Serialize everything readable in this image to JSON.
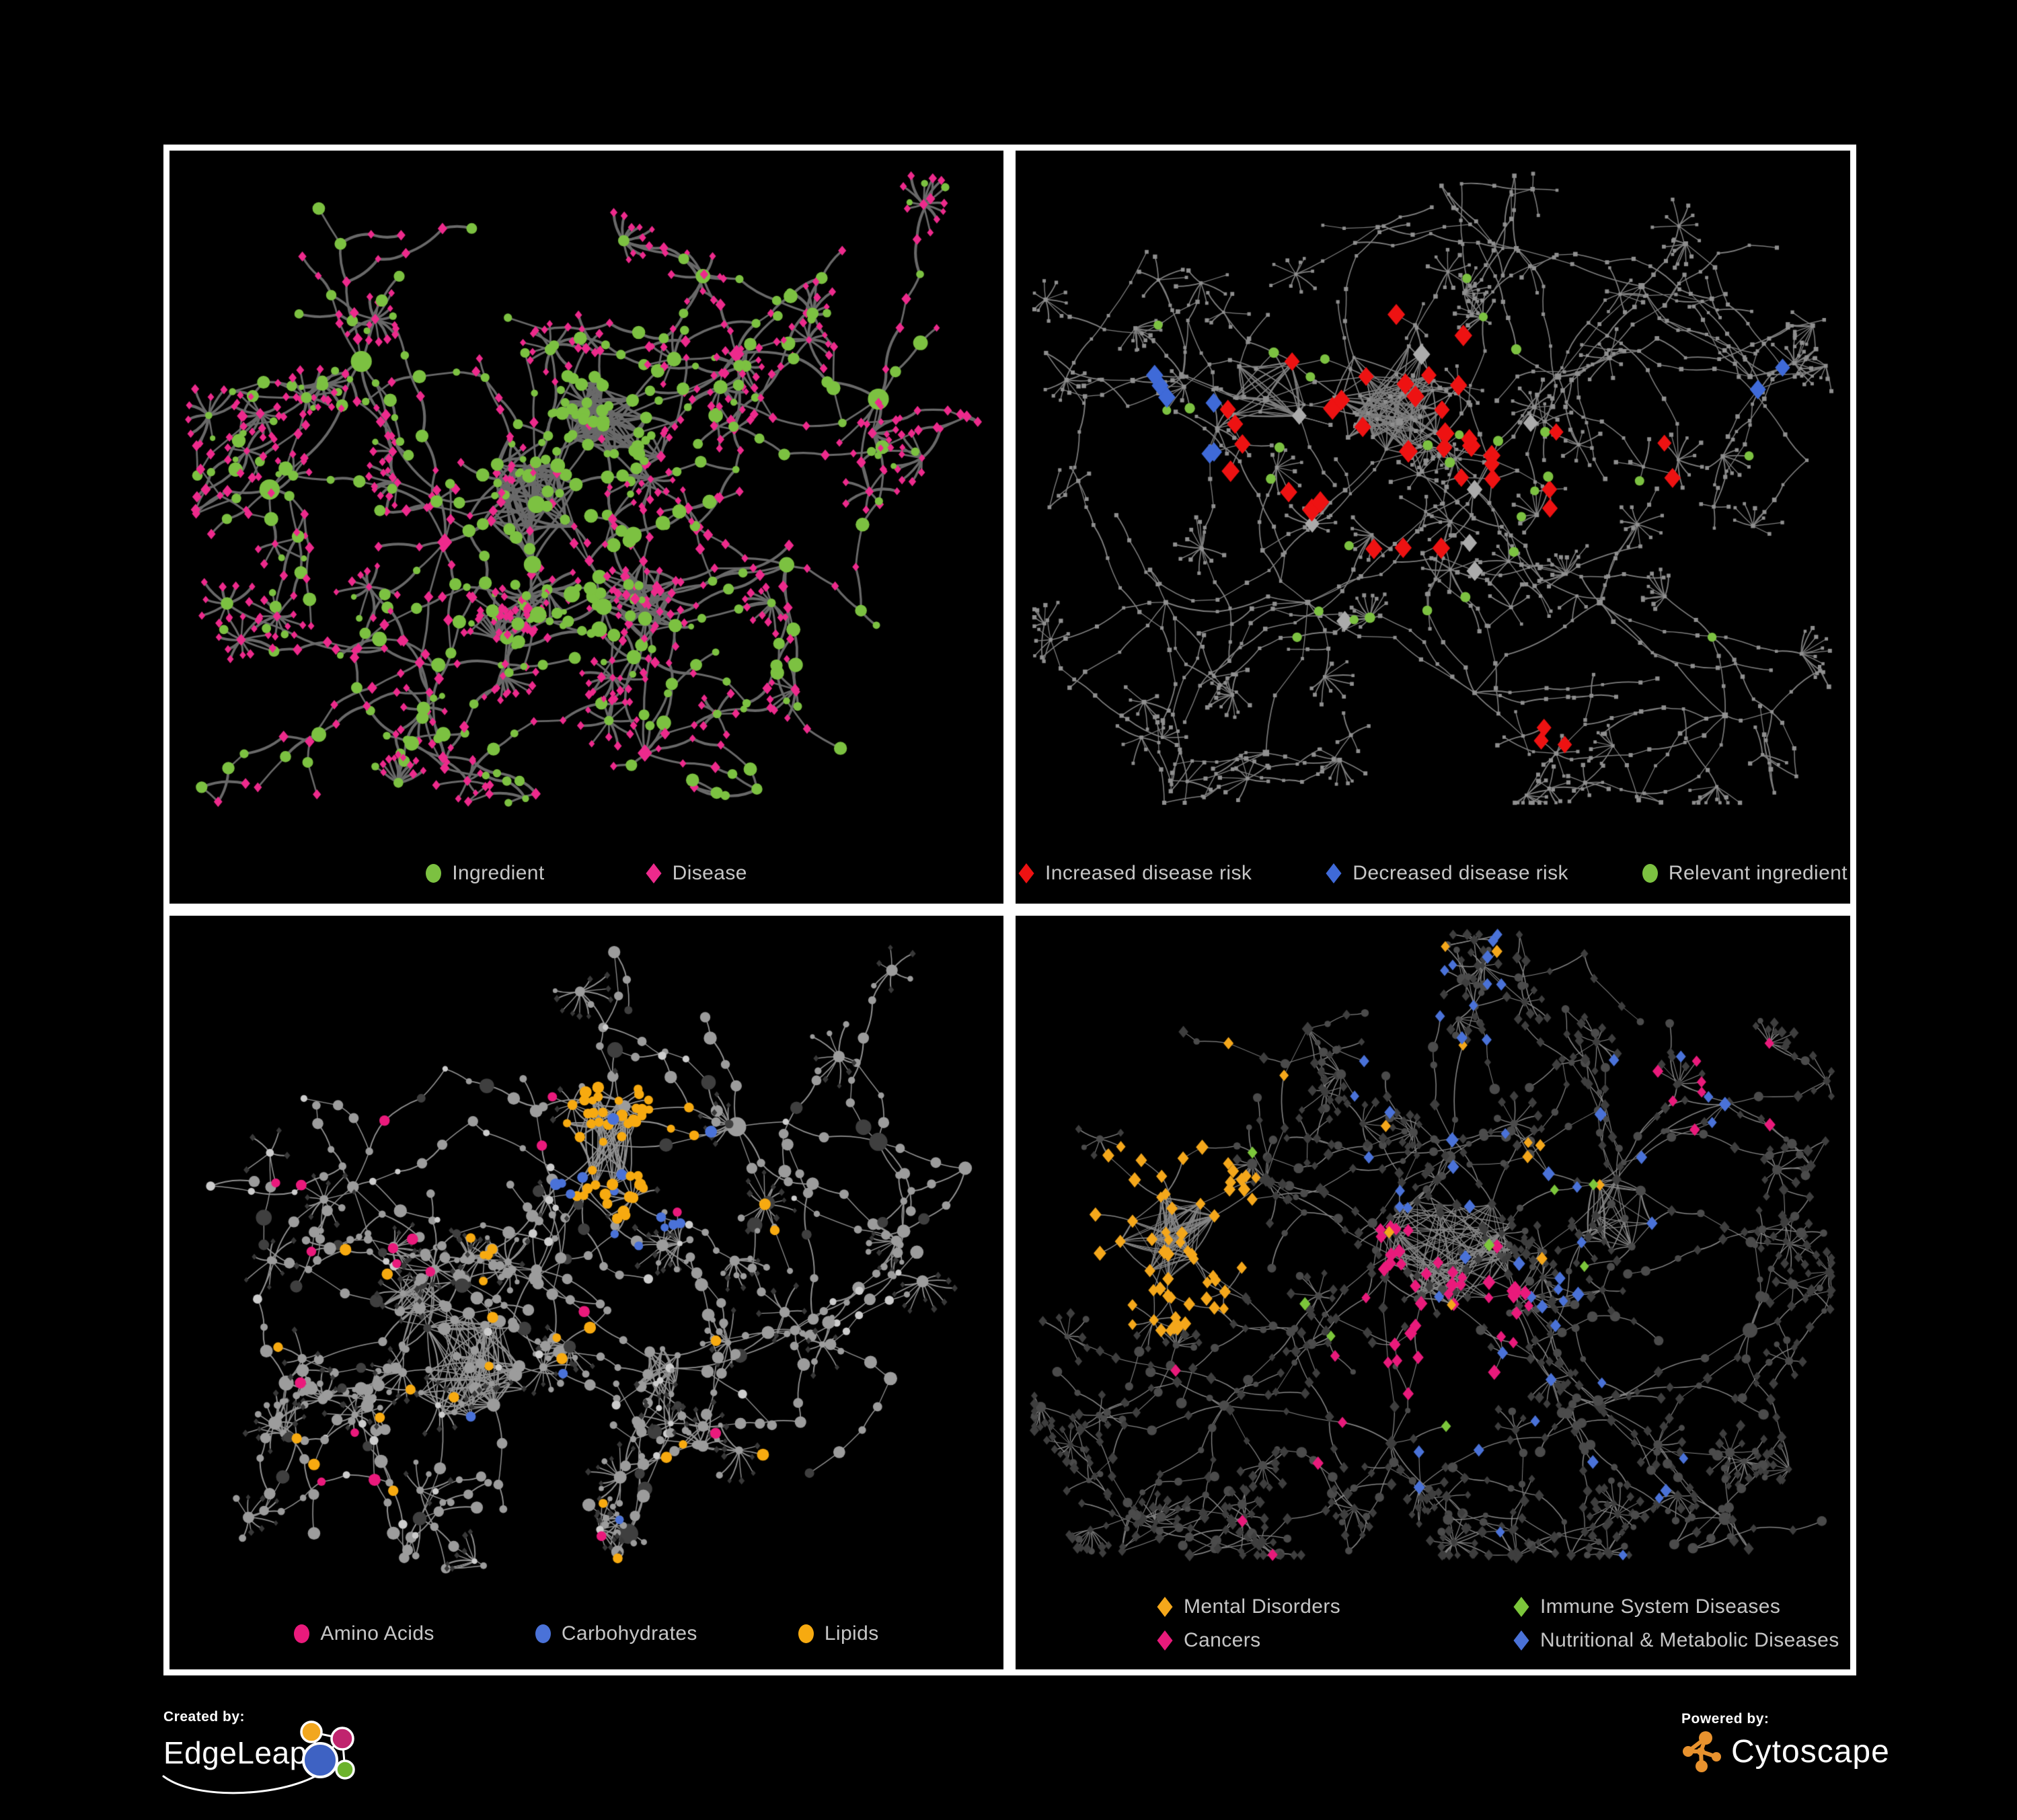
{
  "poster": {
    "background": "#000000",
    "panel_border_color": "#ffffff",
    "legend_text_color": "#c6c6c6"
  },
  "footer": {
    "created_by": "Created by:",
    "brand_left": "EdgeLeap",
    "powered_by": "Powered by:",
    "brand_right": "Cytoscape",
    "cytoscape_orange": "#e8922e",
    "edgeleap_blue": "#3e62c3",
    "edgeleap_orange": "#f2a71f",
    "edgeleap_magenta": "#c0246e",
    "edgeleap_green": "#6cb32c"
  },
  "panels": [
    {
      "name": "ingredient-disease-network",
      "legend_layout": "p1",
      "legend": [
        {
          "label": "Ingredient",
          "shape": "ellipse",
          "color": "#7cc141"
        },
        {
          "label": "Disease",
          "shape": "diamond",
          "color": "#ed2a8c"
        }
      ],
      "net": {
        "seed": 7,
        "edgeColor": "#696969",
        "edgeWidth": 3.4,
        "curve": 0.18,
        "hubs": [
          [
            0.44,
            0.47
          ],
          [
            0.52,
            0.36
          ],
          [
            0.33,
            0.52
          ],
          [
            0.57,
            0.6
          ],
          [
            0.3,
            0.68
          ],
          [
            0.23,
            0.28
          ],
          [
            0.68,
            0.27
          ],
          [
            0.85,
            0.33
          ],
          [
            0.57,
            0.8
          ],
          [
            0.33,
            0.82
          ],
          [
            0.74,
            0.55
          ],
          [
            0.12,
            0.45
          ]
        ],
        "branches": 5,
        "maxSteps": 5,
        "step": 44,
        "sub": 0.25,
        "burstProb": 0.42,
        "burst": [
          5,
          12
        ],
        "burstR": 38,
        "cross": 26,
        "crossDist": 150,
        "padBottom": 150,
        "hairballs": [
          {
            "c": [
              0.52,
              0.36
            ],
            "r": 0.055,
            "edges": 90
          },
          {
            "c": [
              0.44,
              0.48
            ],
            "r": 0.065,
            "edges": 70
          },
          {
            "c": [
              0.57,
              0.6
            ],
            "r": 0.05,
            "edges": 40
          }
        ],
        "baseLeaf": [
          {
            "sh": "d",
            "c": "#ed2a8c",
            "s": [
              4.5,
              6.5
            ],
            "w": 0.87
          },
          {
            "sh": "c",
            "c": "#7cc141",
            "s": [
              4,
              7
            ],
            "w": 0.13
          }
        ],
        "baseMid": [
          {
            "sh": "d",
            "c": "#ed2a8c",
            "s": [
              5,
              8
            ],
            "w": 0.55
          },
          {
            "sh": "c",
            "c": "#7cc141",
            "s": [
              5,
              11
            ],
            "w": 0.45
          }
        ],
        "highlights": [
          {
            "sh": "c",
            "c": "#7cc141",
            "s": [
              6,
              10
            ],
            "count": 40,
            "region": [
              0.52,
              0.36,
              0.07
            ]
          },
          {
            "sh": "c",
            "c": "#7cc141",
            "s": [
              8,
              13
            ],
            "count": 10,
            "region": [
              0.45,
              0.48,
              0.18
            ]
          }
        ]
      }
    },
    {
      "name": "disease-risk-network",
      "legend_layout": "p2",
      "legend": [
        {
          "label": "Increased disease risk",
          "shape": "diamond",
          "color": "#ee1212"
        },
        {
          "label": "Decreased disease risk",
          "shape": "diamond",
          "color": "#3f6ad8"
        },
        {
          "label": "Relevant ingredient",
          "shape": "ellipse",
          "color": "#7cc141"
        }
      ],
      "net": {
        "seed": 21,
        "edgeColor": "#7e7e7e",
        "edgeWidth": 1.6,
        "curve": 0.1,
        "hubs": [
          [
            0.42,
            0.3
          ],
          [
            0.46,
            0.36
          ],
          [
            0.3,
            0.33
          ],
          [
            0.2,
            0.3
          ],
          [
            0.55,
            0.45
          ],
          [
            0.65,
            0.3
          ],
          [
            0.75,
            0.18
          ],
          [
            0.88,
            0.3
          ],
          [
            0.35,
            0.6
          ],
          [
            0.55,
            0.72
          ],
          [
            0.18,
            0.6
          ],
          [
            0.7,
            0.6
          ],
          [
            0.85,
            0.75
          ],
          [
            0.3,
            0.8
          ],
          [
            0.6,
            0.13
          ]
        ],
        "branches": 5,
        "maxSteps": 6,
        "step": 40,
        "sub": 0.25,
        "burstProb": 0.5,
        "burst": [
          4,
          11
        ],
        "burstR": 34,
        "cross": 20,
        "crossDist": 160,
        "padBottom": 150,
        "hairballs": [
          {
            "c": [
              0.45,
              0.33
            ],
            "r": 0.07,
            "edges": 110
          },
          {
            "c": [
              0.3,
              0.32
            ],
            "r": 0.05,
            "edges": 40
          }
        ],
        "baseLeaf": [
          {
            "sh": "s",
            "c": "#8f8f8f",
            "s": [
              2.2,
              3.2
            ],
            "w": 1
          }
        ],
        "baseMid": [
          {
            "sh": "s",
            "c": "#8f8f8f",
            "s": [
              2.2,
              3.4
            ],
            "w": 1
          }
        ],
        "highlights": [
          {
            "sh": "d",
            "c": "#ee1212",
            "s": [
              12,
              15
            ],
            "count": 32,
            "region": [
              0.42,
              0.38,
              0.17
            ]
          },
          {
            "sh": "d",
            "c": "#ee1212",
            "s": [
              11,
              13
            ],
            "count": 5,
            "region": [
              0.72,
              0.45,
              0.1
            ]
          },
          {
            "sh": "d",
            "c": "#ee1212",
            "s": [
              11,
              13
            ],
            "count": 3,
            "region": [
              0.6,
              0.78,
              0.06
            ]
          },
          {
            "sh": "d",
            "c": "#3f6ad8",
            "s": [
              11,
              14
            ],
            "count": 6,
            "region": [
              0.2,
              0.37,
              0.08
            ]
          },
          {
            "sh": "d",
            "c": "#3f6ad8",
            "s": [
              11,
              13
            ],
            "count": 2,
            "region": [
              0.9,
              0.3,
              0.04
            ]
          },
          {
            "sh": "d",
            "c": "#ababab",
            "s": [
              11,
              14
            ],
            "count": 8,
            "region": [
              0.42,
              0.42,
              0.22
            ]
          },
          {
            "sh": "c",
            "c": "#7cc141",
            "s": [
              6,
              8
            ],
            "count": 26,
            "region": [
              0.38,
              0.38,
              0.26
            ]
          },
          {
            "sh": "c",
            "c": "#7cc141",
            "s": [
              6,
              8
            ],
            "count": 4,
            "region": [
              0.75,
              0.5,
              0.18
            ]
          }
        ]
      }
    },
    {
      "name": "nutrient-class-network",
      "legend_layout": "p3",
      "legend": [
        {
          "label": "Amino Acids",
          "shape": "ellipse",
          "color": "#ea1a7c"
        },
        {
          "label": "Carbohydrates",
          "shape": "ellipse",
          "color": "#4a72d8"
        },
        {
          "label": "Lipids",
          "shape": "ellipse",
          "color": "#f7aa10"
        }
      ],
      "net": {
        "seed": 33,
        "edgeColor": "#929292",
        "edgeWidth": 1.7,
        "curve": 0.16,
        "hubs": [
          [
            0.36,
            0.6
          ],
          [
            0.3,
            0.52
          ],
          [
            0.52,
            0.3
          ],
          [
            0.44,
            0.47
          ],
          [
            0.22,
            0.36
          ],
          [
            0.6,
            0.6
          ],
          [
            0.68,
            0.28
          ],
          [
            0.85,
            0.3
          ],
          [
            0.55,
            0.82
          ],
          [
            0.3,
            0.8
          ],
          [
            0.75,
            0.55
          ],
          [
            0.14,
            0.62
          ]
        ],
        "branches": 5,
        "maxSteps": 5,
        "step": 44,
        "sub": 0.25,
        "burstProb": 0.45,
        "burst": [
          5,
          13
        ],
        "burstR": 38,
        "cross": 24,
        "crossDist": 150,
        "padBottom": 150,
        "hairballs": [
          {
            "c": [
              0.36,
              0.6
            ],
            "r": 0.07,
            "edges": 110
          },
          {
            "c": [
              0.52,
              0.3
            ],
            "r": 0.055,
            "edges": 80
          },
          {
            "c": [
              0.3,
              0.52
            ],
            "r": 0.05,
            "edges": 40
          },
          {
            "c": [
              0.6,
              0.6
            ],
            "r": 0.045,
            "edges": 30
          }
        ],
        "baseLeaf": [
          {
            "sh": "d",
            "c": "#383838",
            "s": [
              3.5,
              5
            ],
            "w": 0.75
          },
          {
            "sh": "c",
            "c": "#9c9c9c",
            "s": [
              3.5,
              5.5
            ],
            "w": 0.25
          }
        ],
        "baseMid": [
          {
            "sh": "c",
            "c": "#9c9c9c",
            "s": [
              4.5,
              10
            ],
            "w": 0.78
          },
          {
            "sh": "c",
            "c": "#cccccc",
            "s": [
              4,
              7
            ],
            "w": 0.12
          },
          {
            "sh": "c",
            "c": "#3f3f3f",
            "s": [
              6,
              12
            ],
            "w": 0.1
          }
        ],
        "highlights": [
          {
            "sh": "c",
            "c": "#f7aa10",
            "s": [
              6,
              9
            ],
            "count": 45,
            "region": [
              0.55,
              0.3,
              0.09
            ]
          },
          {
            "sh": "c",
            "c": "#f7aa10",
            "s": [
              6,
              9
            ],
            "count": 30,
            "region": [
              0.45,
              0.55,
              0.35
            ]
          },
          {
            "sh": "c",
            "c": "#4a72d8",
            "s": [
              6,
              9
            ],
            "count": 12,
            "region": [
              0.55,
              0.32,
              0.11
            ]
          },
          {
            "sh": "c",
            "c": "#4a72d8",
            "s": [
              6,
              8
            ],
            "count": 5,
            "region": [
              0.5,
              0.65,
              0.28
            ]
          },
          {
            "sh": "c",
            "c": "#ea1a7c",
            "s": [
              6,
              9
            ],
            "count": 14,
            "region": [
              0.45,
              0.6,
              0.4
            ]
          },
          {
            "sh": "c",
            "c": "#ea1a7c",
            "s": [
              6,
              8
            ],
            "count": 4,
            "region": [
              0.3,
              0.3,
              0.24
            ]
          }
        ]
      }
    },
    {
      "name": "disease-category-network",
      "legend_layout": "grid",
      "legend": [
        {
          "label": "Mental Disorders",
          "shape": "diamond",
          "color": "#f4a71b"
        },
        {
          "label": "Immune System Diseases",
          "shape": "diamond",
          "color": "#7cc63b"
        },
        {
          "label": "Cancers",
          "shape": "diamond",
          "color": "#e91a7b"
        },
        {
          "label": "Nutritional & Metabolic Diseases",
          "shape": "diamond",
          "color": "#4a72d8"
        }
      ],
      "net": {
        "seed": 55,
        "edgeColor": "#868686",
        "edgeWidth": 1.3,
        "curve": 0.12,
        "hubs": [
          [
            0.18,
            0.42
          ],
          [
            0.3,
            0.35
          ],
          [
            0.45,
            0.45
          ],
          [
            0.52,
            0.32
          ],
          [
            0.6,
            0.5
          ],
          [
            0.72,
            0.35
          ],
          [
            0.85,
            0.25
          ],
          [
            0.7,
            0.65
          ],
          [
            0.45,
            0.7
          ],
          [
            0.25,
            0.65
          ],
          [
            0.55,
            0.12
          ],
          [
            0.35,
            0.15
          ],
          [
            0.88,
            0.55
          ],
          [
            0.15,
            0.8
          ],
          [
            0.6,
            0.85
          ],
          [
            0.85,
            0.8
          ]
        ],
        "branches": 5,
        "maxSteps": 5,
        "step": 40,
        "sub": 0.28,
        "burstProb": 0.45,
        "burst": [
          4,
          10
        ],
        "burstR": 34,
        "cross": 30,
        "crossDist": 160,
        "padBottom": 170,
        "hairballs": [
          {
            "c": [
              0.18,
              0.42
            ],
            "r": 0.065,
            "edges": 120
          },
          {
            "c": [
              0.52,
              0.44
            ],
            "r": 0.08,
            "edges": 130
          },
          {
            "c": [
              0.72,
              0.4
            ],
            "r": 0.05,
            "edges": 50
          }
        ],
        "baseLeaf": [
          {
            "sh": "d",
            "c": "#3e3e3e",
            "s": [
              5,
              7.5
            ],
            "w": 0.9
          },
          {
            "sh": "c",
            "c": "#4b4b4b",
            "s": [
              4,
              6
            ],
            "w": 0.1
          }
        ],
        "baseMid": [
          {
            "sh": "d",
            "c": "#3e3e3e",
            "s": [
              5,
              8
            ],
            "w": 0.55
          },
          {
            "sh": "c",
            "c": "#4b4b4b",
            "s": [
              4,
              8
            ],
            "w": 0.45
          }
        ],
        "highlights": [
          {
            "sh": "d",
            "c": "#f4a71b",
            "s": [
              7,
              10
            ],
            "count": 80,
            "region": [
              0.18,
              0.42,
              0.12
            ]
          },
          {
            "sh": "d",
            "c": "#f4a71b",
            "s": [
              7,
              9
            ],
            "count": 14,
            "region": [
              0.45,
              0.2,
              0.3
            ]
          },
          {
            "sh": "d",
            "c": "#e91a7b",
            "s": [
              7,
              10
            ],
            "count": 42,
            "region": [
              0.5,
              0.52,
              0.12
            ]
          },
          {
            "sh": "d",
            "c": "#e91a7b",
            "s": [
              7,
              9
            ],
            "count": 8,
            "region": [
              0.85,
              0.22,
              0.1
            ]
          },
          {
            "sh": "d",
            "c": "#e91a7b",
            "s": [
              7,
              9
            ],
            "count": 6,
            "region": [
              0.3,
              0.75,
              0.18
            ]
          },
          {
            "sh": "d",
            "c": "#4a72d8",
            "s": [
              7,
              10
            ],
            "count": 26,
            "region": [
              0.68,
              0.38,
              0.22
            ]
          },
          {
            "sh": "d",
            "c": "#4a72d8",
            "s": [
              7,
              9
            ],
            "count": 16,
            "region": [
              0.35,
              0.08,
              0.3
            ]
          },
          {
            "sh": "d",
            "c": "#4a72d8",
            "s": [
              7,
              9
            ],
            "count": 14,
            "region": [
              0.6,
              0.75,
              0.25
            ]
          },
          {
            "sh": "d",
            "c": "#7cc63b",
            "s": [
              7,
              9
            ],
            "count": 8,
            "region": [
              0.45,
              0.42,
              0.25
            ]
          }
        ]
      }
    }
  ]
}
